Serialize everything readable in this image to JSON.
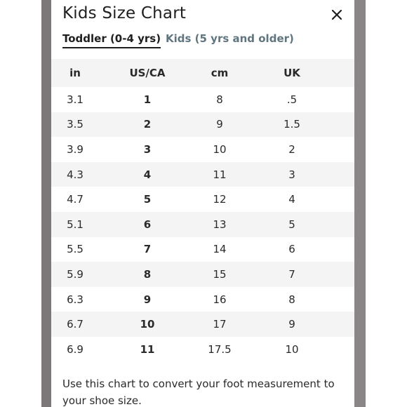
{
  "modal": {
    "title": "Kids Size Chart",
    "close_icon": "close-icon"
  },
  "tabs": [
    {
      "label": "Toddler (0-4 yrs)",
      "active": true
    },
    {
      "label": "Kids (5 yrs and older)",
      "active": false
    }
  ],
  "table": {
    "headers": [
      "in",
      "US/CA",
      "cm",
      "UK"
    ],
    "rows": [
      [
        "3.1",
        "1",
        "8",
        ".5"
      ],
      [
        "3.5",
        "2",
        "9",
        "1.5"
      ],
      [
        "3.9",
        "3",
        "10",
        "2"
      ],
      [
        "4.3",
        "4",
        "11",
        "3"
      ],
      [
        "4.7",
        "5",
        "12",
        "4"
      ],
      [
        "5.1",
        "6",
        "13",
        "5"
      ],
      [
        "5.5",
        "7",
        "14",
        "6"
      ],
      [
        "5.9",
        "8",
        "15",
        "7"
      ],
      [
        "6.3",
        "9",
        "16",
        "8"
      ],
      [
        "6.7",
        "10",
        "17",
        "9"
      ],
      [
        "6.9",
        "11",
        "17.5",
        "10"
      ]
    ]
  },
  "footnote": "Use this chart to convert your foot measurement to your shoe size.",
  "colors": {
    "backdrop": "#8f8a8b",
    "stripe": "#f4f4f4",
    "inactive_tab": "#5f7580",
    "text": "#1f1f1f"
  }
}
